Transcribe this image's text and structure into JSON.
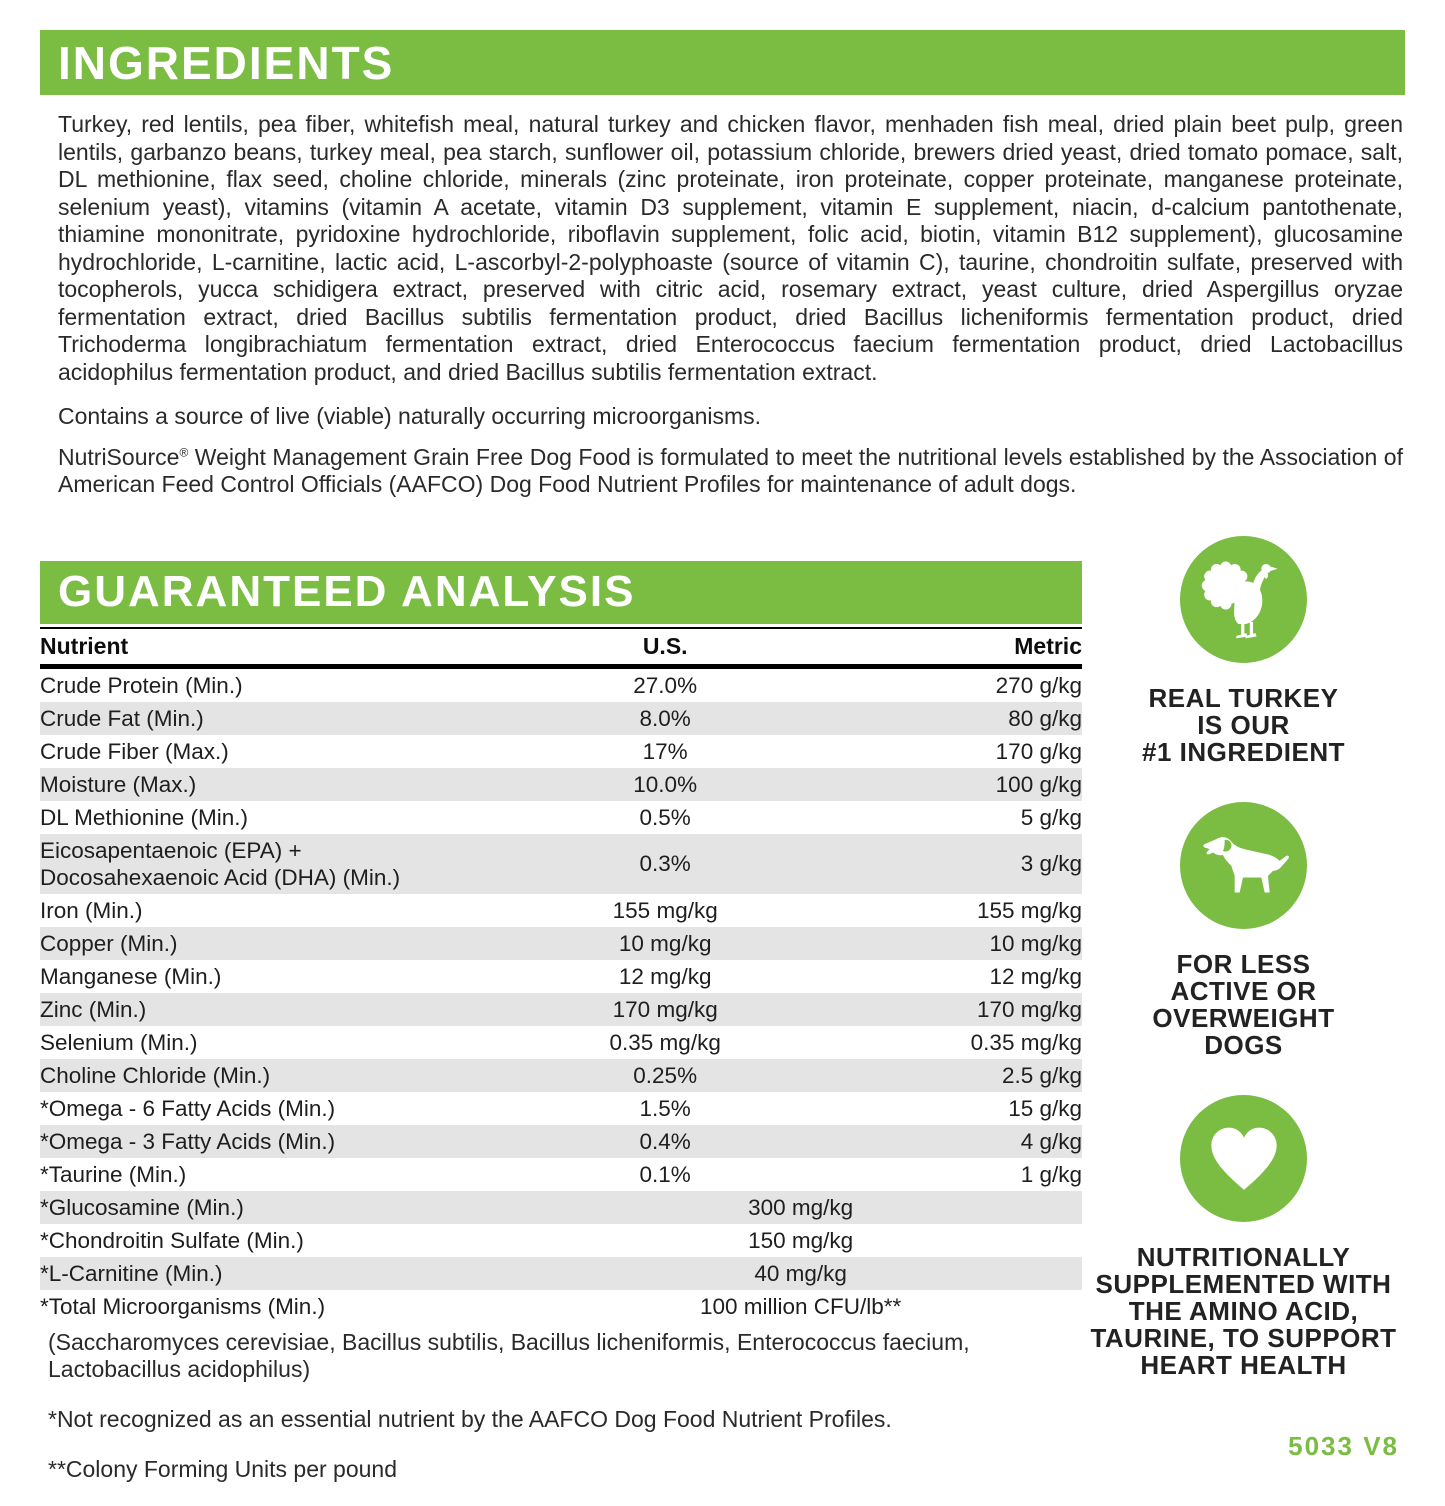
{
  "colors": {
    "accent_green": "#7bbc43",
    "row_shading": "#e4e4e4",
    "text": "#262626"
  },
  "ingredients": {
    "title": "INGREDIENTS",
    "body": "Turkey, red lentils, pea fiber, whitefish meal, natural turkey and chicken flavor, menhaden fish meal, dried plain beet pulp, green lentils, garbanzo beans, turkey meal, pea starch, sunflower oil, potassium chloride, brewers dried yeast, dried tomato pomace, salt, DL methionine, flax seed, choline chloride, minerals (zinc proteinate, iron proteinate, copper proteinate, manganese proteinate, selenium yeast), vitamins (vitamin A acetate, vitamin D3 supplement, vitamin E supplement, niacin, d-calcium pantothenate, thiamine mononitrate, pyridoxine hydrochloride, riboflavin supplement, folic acid, biotin, vitamin B12 supplement), glucosamine hydrochloride, L-carnitine, lactic acid, L-ascorbyl-2-polyphoaste (source of vitamin C), taurine, chondroitin sulfate, preserved with tocopherols, yucca schidigera extract, preserved with citric acid, rosemary extract, yeast culture, dried Aspergillus oryzae fermentation extract, dried Bacillus subtilis fermentation product, dried Bacillus licheniformis fermentation product, dried Trichoderma longibrachiatum fermentation extract, dried Enterococcus faecium fermentation product, dried Lactobacillus acidophilus fermentation product, and dried Bacillus subtilis fermentation extract.",
    "contains_note": "Contains a source of live (viable) naturally occurring microorganisms.",
    "aafco_brand": "NutriSource",
    "aafco_reg": "®",
    "aafco_rest": " Weight Management Grain Free Dog Food is formulated to meet the nutritional levels established by the Association of American Feed Control Officials (AAFCO) Dog Food Nutrient Profiles for maintenance of adult dogs."
  },
  "analysis": {
    "title": "GUARANTEED ANALYSIS",
    "columns": [
      "Nutrient",
      "U.S.",
      "Metric"
    ],
    "rows": [
      {
        "nutrient": "Crude Protein (Min.)",
        "us": "27.0%",
        "metric": "270 g/kg",
        "shaded": false
      },
      {
        "nutrient": "Crude Fat (Min.)",
        "us": "8.0%",
        "metric": "80 g/kg",
        "shaded": true
      },
      {
        "nutrient": "Crude Fiber (Max.)",
        "us": "17%",
        "metric": "170 g/kg",
        "shaded": false
      },
      {
        "nutrient": "Moisture (Max.)",
        "us": "10.0%",
        "metric": "100 g/kg",
        "shaded": true
      },
      {
        "nutrient": "DL Methionine (Min.)",
        "us": "0.5%",
        "metric": "5 g/kg",
        "shaded": false
      },
      {
        "nutrient": "Eicosapentaenoic (EPA) +\nDocosahexaenoic Acid (DHA) (Min.)",
        "us": "0.3%",
        "metric": "3 g/kg",
        "shaded": true
      },
      {
        "nutrient": "Iron (Min.)",
        "us": "155 mg/kg",
        "metric": "155 mg/kg",
        "shaded": false
      },
      {
        "nutrient": "Copper (Min.)",
        "us": "10 mg/kg",
        "metric": "10 mg/kg",
        "shaded": true
      },
      {
        "nutrient": "Manganese (Min.)",
        "us": "12 mg/kg",
        "metric": "12 mg/kg",
        "shaded": false
      },
      {
        "nutrient": "Zinc (Min.)",
        "us": "170 mg/kg",
        "metric": "170 mg/kg",
        "shaded": true
      },
      {
        "nutrient": "Selenium (Min.)",
        "us": "0.35 mg/kg",
        "metric": "0.35 mg/kg",
        "shaded": false
      },
      {
        "nutrient": "Choline Chloride (Min.)",
        "us": "0.25%",
        "metric": "2.5 g/kg",
        "shaded": true
      },
      {
        "nutrient": "*Omega - 6 Fatty Acids (Min.)",
        "us": "1.5%",
        "metric": "15 g/kg",
        "shaded": false
      },
      {
        "nutrient": "*Omega - 3 Fatty Acids (Min.)",
        "us": "0.4%",
        "metric": "4 g/kg",
        "shaded": true
      },
      {
        "nutrient": "*Taurine (Min.)",
        "us": "0.1%",
        "metric": "1 g/kg",
        "shaded": false
      },
      {
        "nutrient": "*Glucosamine (Min.)",
        "combined": "300 mg/kg",
        "shaded": true
      },
      {
        "nutrient": "*Chondroitin Sulfate (Min.)",
        "combined": "150 mg/kg",
        "shaded": false
      },
      {
        "nutrient": "*L-Carnitine (Min.)",
        "combined": "40 mg/kg",
        "shaded": true
      },
      {
        "nutrient": "*Total Microorganisms (Min.)",
        "combined": "100 million CFU/lb**",
        "shaded": false
      }
    ],
    "microorganisms_note": "(Saccharomyces cerevisiae, Bacillus subtilis, Bacillus licheniformis, Enterococcus faecium, Lactobacillus acidophilus)",
    "footnote_essential": "*Not recognized as an essential nutrient by the AAFCO Dog Food Nutrient Profiles.",
    "footnote_cfu": "**Colony Forming Units per pound"
  },
  "badges": [
    {
      "icon": "turkey-icon",
      "label": "REAL TURKEY\nIS OUR\n#1 INGREDIENT"
    },
    {
      "icon": "dog-icon",
      "label": "FOR LESS\nACTIVE OR\nOVERWEIGHT\nDOGS"
    },
    {
      "icon": "heart-icon",
      "label": "NUTRITIONALLY\nSUPPLEMENTED WITH\nTHE AMINO ACID,\nTAURINE, TO SUPPORT\nHEART HEALTH"
    }
  ],
  "footer_code": "5033 V8"
}
